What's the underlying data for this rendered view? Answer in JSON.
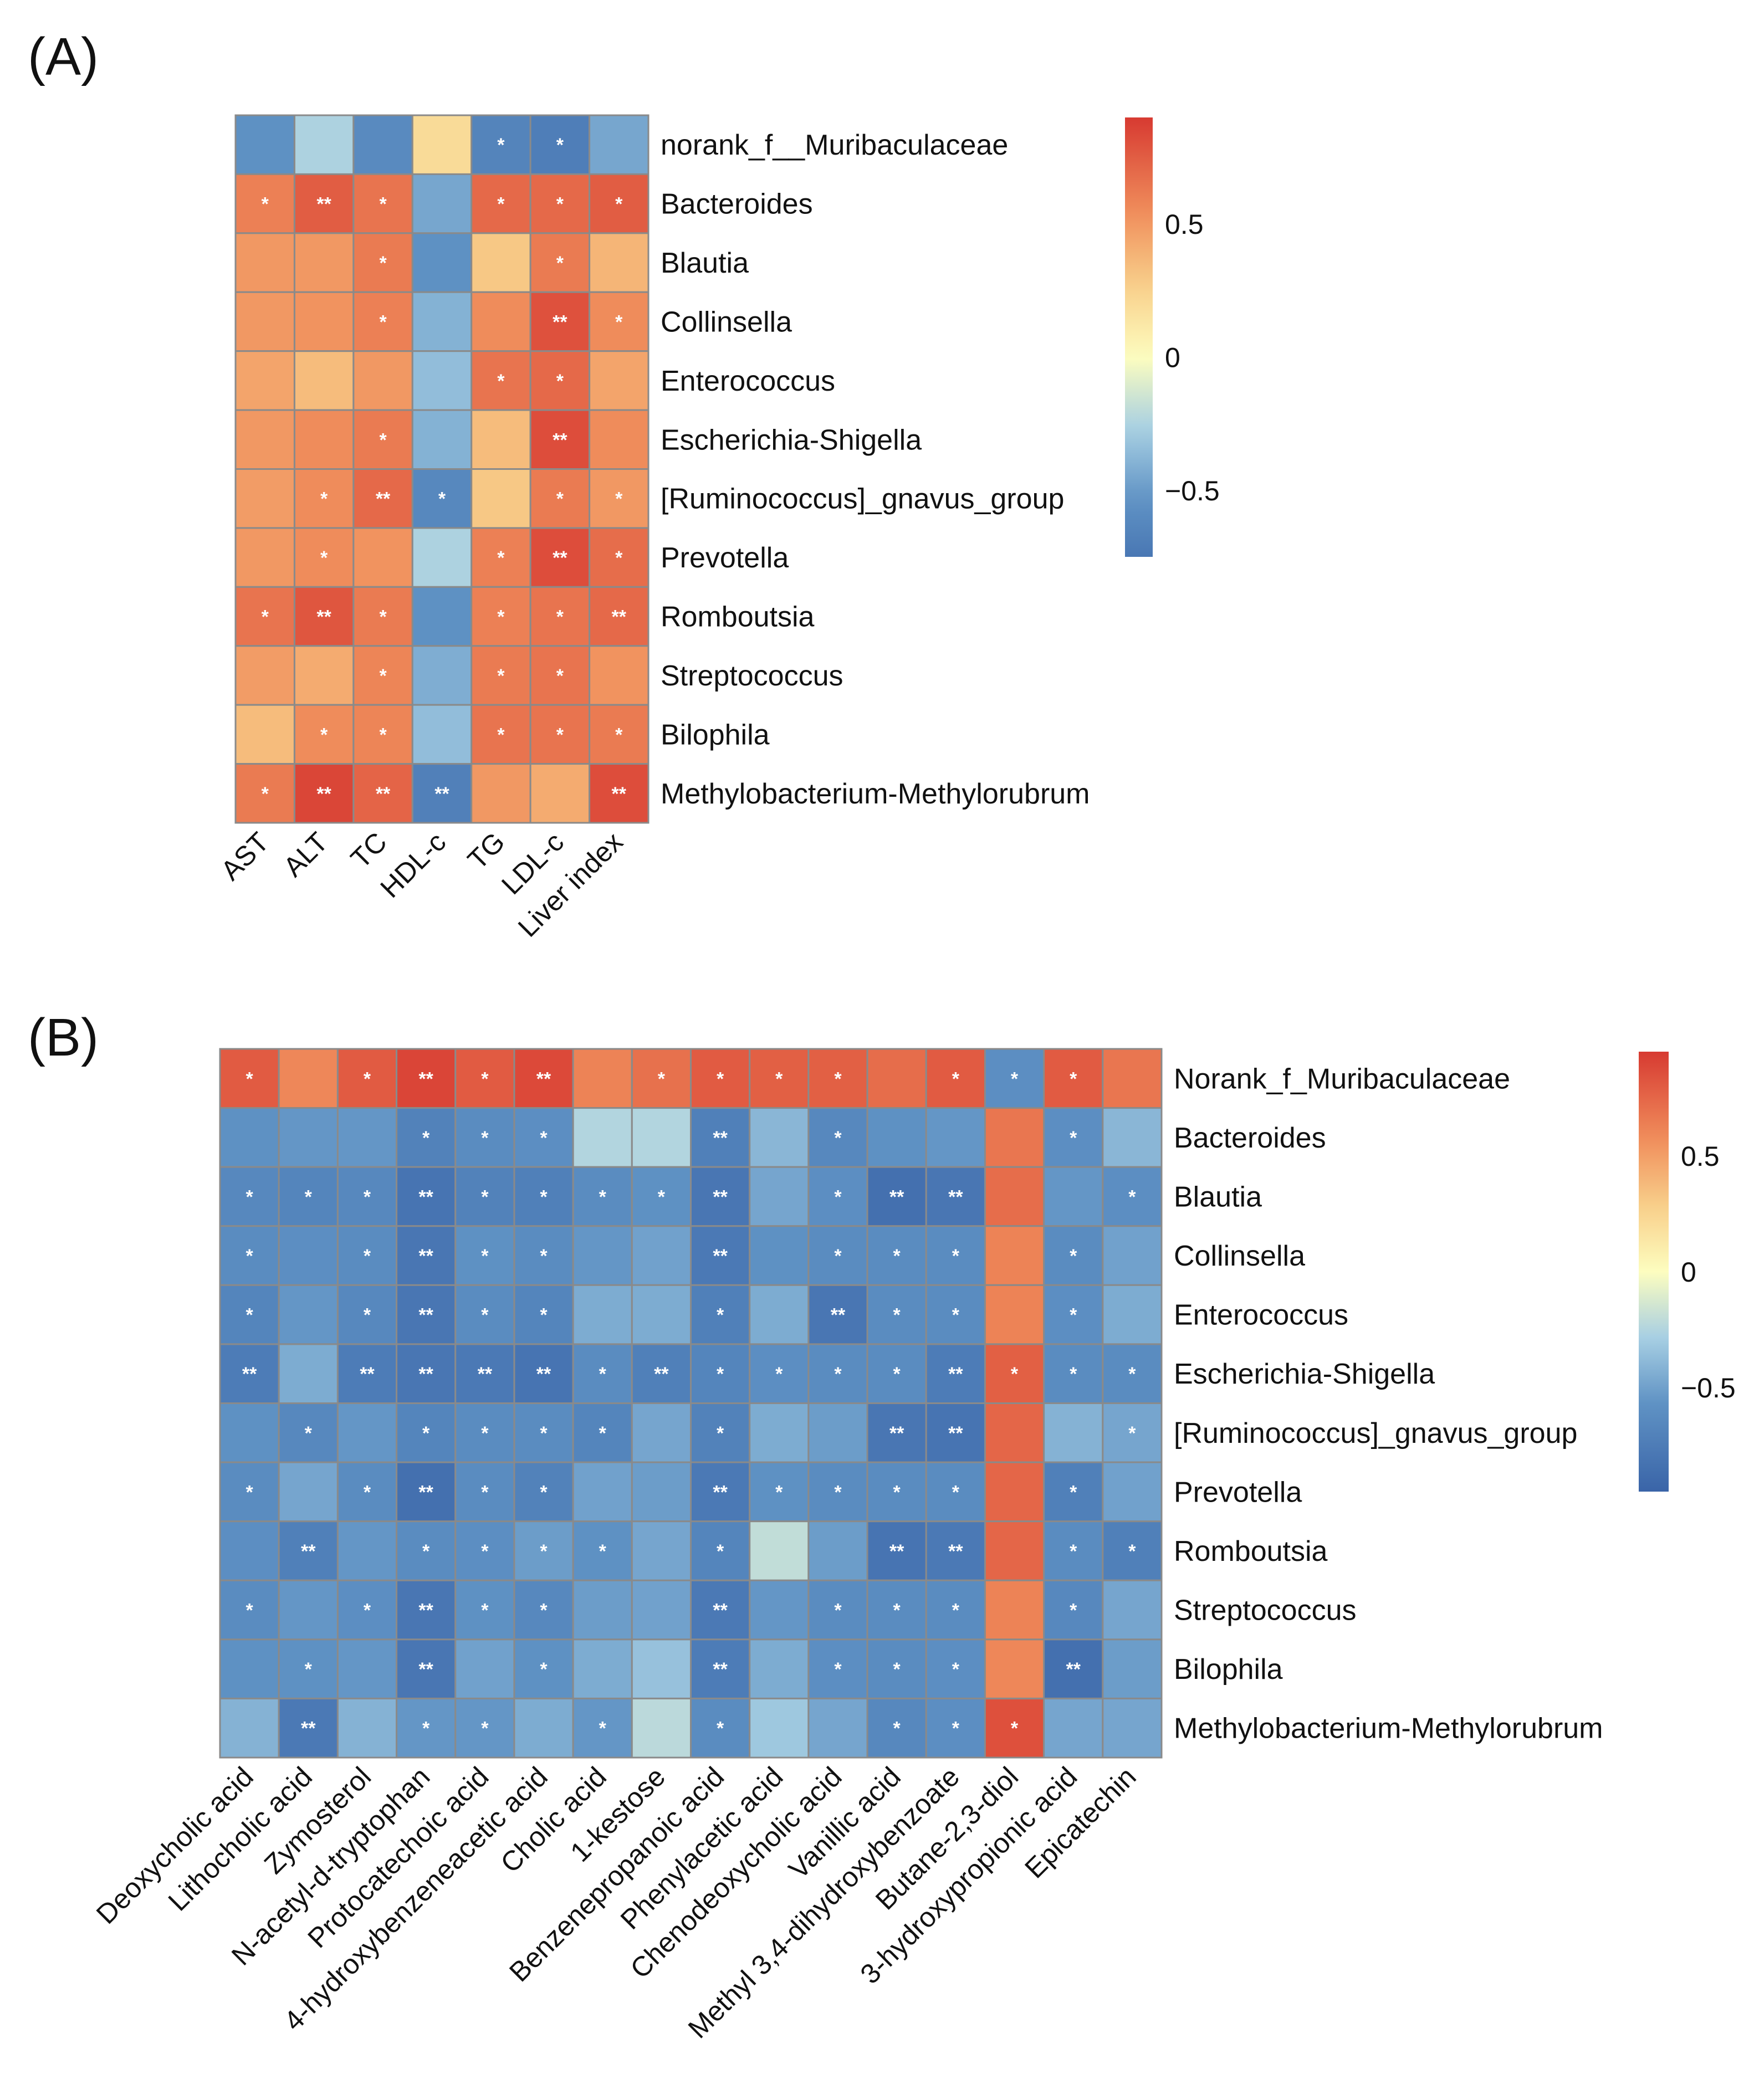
{
  "palette": {
    "low": "#3d6fae",
    "mid": "#fdfdbf",
    "high": "#d73a31",
    "grid": "#8a8a8a"
  },
  "chart_data": [
    {
      "type": "heatmap",
      "panel": "(A)",
      "rows": [
        "norank_f__Muribaculaceae",
        "Bacteroides",
        "Blautia",
        "Collinsella",
        "Enterococcus",
        "Escherichia-Shigella",
        "[Ruminococcus]_gnavus_group",
        "Prevotella",
        "Romboutsia",
        "Streptococcus",
        "Bilophila",
        "Methylobacterium-Methylorubrum"
      ],
      "columns": [
        "AST",
        "ALT",
        "TC",
        "HDL-c",
        "TG",
        "LDL-c",
        "Liver index"
      ],
      "values": [
        [
          -0.55,
          -0.25,
          -0.6,
          0.2,
          -0.65,
          -0.7,
          -0.45
        ],
        [
          0.6,
          0.75,
          0.65,
          -0.45,
          0.7,
          0.7,
          0.75
        ],
        [
          0.5,
          0.5,
          0.62,
          -0.55,
          0.3,
          0.62,
          0.38
        ],
        [
          0.5,
          0.52,
          0.6,
          -0.4,
          0.55,
          0.8,
          0.55
        ],
        [
          0.45,
          0.35,
          0.5,
          -0.35,
          0.65,
          0.7,
          0.45
        ],
        [
          0.5,
          0.55,
          0.62,
          -0.4,
          0.35,
          0.82,
          0.55
        ],
        [
          0.48,
          0.55,
          0.7,
          -0.62,
          0.3,
          0.62,
          0.5
        ],
        [
          0.5,
          0.55,
          0.52,
          -0.25,
          0.6,
          0.82,
          0.68
        ],
        [
          0.65,
          0.78,
          0.62,
          -0.55,
          0.6,
          0.65,
          0.7
        ],
        [
          0.48,
          0.42,
          0.58,
          -0.42,
          0.62,
          0.65,
          0.52
        ],
        [
          0.35,
          0.55,
          0.58,
          -0.35,
          0.65,
          0.65,
          0.62
        ],
        [
          0.62,
          0.85,
          0.72,
          -0.68,
          0.5,
          0.42,
          0.82
        ]
      ],
      "signif": [
        [
          "",
          "",
          "",
          "",
          "*",
          "*",
          ""
        ],
        [
          "*",
          "**",
          "*",
          "",
          "*",
          "*",
          "*"
        ],
        [
          "",
          "",
          "*",
          "",
          "",
          "*",
          ""
        ],
        [
          "",
          "",
          "*",
          "",
          "",
          "**",
          "*"
        ],
        [
          "",
          "",
          "",
          "",
          "*",
          "*",
          ""
        ],
        [
          "",
          "",
          "*",
          "",
          "",
          "**",
          ""
        ],
        [
          "",
          "*",
          "**",
          "*",
          "",
          "*",
          "*"
        ],
        [
          "",
          "*",
          "",
          "",
          "*",
          "**",
          "*"
        ],
        [
          "*",
          "**",
          "*",
          "",
          "*",
          "*",
          "**"
        ],
        [
          "",
          "",
          "*",
          "",
          "*",
          "*",
          ""
        ],
        [
          "",
          "*",
          "*",
          "",
          "*",
          "*",
          "*"
        ],
        [
          "*",
          "**",
          "**",
          "**",
          "",
          "",
          "**"
        ]
      ],
      "colorbar": {
        "range": [
          -0.75,
          0.9
        ],
        "ticks": [
          0.5,
          0
        ],
        "neg_tick_label": "−0.5",
        "neg_tick_value": -0.5
      }
    },
    {
      "type": "heatmap",
      "panel": "(B)",
      "rows": [
        "Norank_f_Muribaculaceae",
        "Bacteroides",
        "Blautia",
        "Collinsella",
        "Enterococcus",
        "Escherichia-Shigella",
        "[Ruminococcus]_gnavus_group",
        "Prevotella",
        "Romboutsia",
        "Streptococcus",
        "Bilophila",
        "Methylobacterium-Methylorubrum"
      ],
      "columns": [
        "Deoxycholic acid",
        "Lithocholic acid",
        "Zymosterol",
        "N-acetyl-d-tryptophan",
        "Protocatechoic acid",
        "4-hydroxybenzeneacetic acid",
        "Cholic acid",
        "1-kestose",
        "Benzenepropanoic acid",
        "Phenylacetic acid",
        "Chenodeoxycholic acid",
        "Vanillic acid",
        "Methyl 3,4-dihydroxybenzoate",
        "Butane-2,3-diol",
        "3-hydroxypropionic acid",
        "Epicatechin"
      ],
      "values": [
        [
          0.8,
          0.6,
          0.8,
          0.9,
          0.8,
          0.88,
          0.62,
          0.7,
          0.8,
          0.78,
          0.78,
          0.72,
          0.8,
          -0.6,
          0.8,
          0.68
        ],
        [
          -0.58,
          -0.55,
          -0.55,
          -0.7,
          -0.62,
          -0.6,
          -0.25,
          -0.25,
          -0.72,
          -0.4,
          -0.65,
          -0.58,
          -0.55,
          0.68,
          -0.6,
          -0.4
        ],
        [
          -0.65,
          -0.68,
          -0.65,
          -0.82,
          -0.7,
          -0.72,
          -0.62,
          -0.58,
          -0.8,
          -0.48,
          -0.6,
          -0.85,
          -0.8,
          0.72,
          -0.55,
          -0.6
        ],
        [
          -0.62,
          -0.6,
          -0.62,
          -0.8,
          -0.58,
          -0.62,
          -0.55,
          -0.5,
          -0.78,
          -0.58,
          -0.62,
          -0.62,
          -0.62,
          0.62,
          -0.62,
          -0.5
        ],
        [
          -0.68,
          -0.55,
          -0.65,
          -0.8,
          -0.62,
          -0.68,
          -0.45,
          -0.45,
          -0.72,
          -0.45,
          -0.8,
          -0.62,
          -0.62,
          0.62,
          -0.6,
          -0.45
        ],
        [
          -0.75,
          -0.45,
          -0.75,
          -0.8,
          -0.78,
          -0.82,
          -0.62,
          -0.72,
          -0.68,
          -0.6,
          -0.62,
          -0.62,
          -0.75,
          0.78,
          -0.62,
          -0.62
        ],
        [
          -0.58,
          -0.65,
          -0.55,
          -0.68,
          -0.62,
          -0.62,
          -0.68,
          -0.48,
          -0.7,
          -0.45,
          -0.52,
          -0.8,
          -0.82,
          0.75,
          -0.42,
          -0.48
        ],
        [
          -0.62,
          -0.48,
          -0.62,
          -0.85,
          -0.62,
          -0.7,
          -0.5,
          -0.52,
          -0.78,
          -0.58,
          -0.62,
          -0.62,
          -0.62,
          0.75,
          -0.72,
          -0.5
        ],
        [
          -0.6,
          -0.72,
          -0.55,
          -0.62,
          -0.6,
          -0.52,
          -0.58,
          -0.48,
          -0.68,
          -0.2,
          -0.52,
          -0.82,
          -0.78,
          0.75,
          -0.62,
          -0.72
        ],
        [
          -0.62,
          -0.55,
          -0.6,
          -0.8,
          -0.58,
          -0.65,
          -0.52,
          -0.5,
          -0.78,
          -0.55,
          -0.62,
          -0.62,
          -0.62,
          0.62,
          -0.65,
          -0.48
        ],
        [
          -0.58,
          -0.58,
          -0.55,
          -0.8,
          -0.5,
          -0.58,
          -0.45,
          -0.35,
          -0.75,
          -0.45,
          -0.6,
          -0.62,
          -0.6,
          0.6,
          -0.85,
          -0.52
        ],
        [
          -0.42,
          -0.78,
          -0.42,
          -0.55,
          -0.55,
          -0.45,
          -0.55,
          -0.22,
          -0.62,
          -0.32,
          -0.48,
          -0.65,
          -0.6,
          0.85,
          -0.48,
          -0.48
        ]
      ],
      "signif": [
        [
          "*",
          "",
          "*",
          "**",
          "*",
          "**",
          "",
          "*",
          "*",
          "*",
          "*",
          "",
          "*",
          "*",
          "*",
          ""
        ],
        [
          "",
          "",
          "",
          "*",
          "*",
          "*",
          "",
          "",
          "**",
          "",
          "*",
          "",
          "",
          "",
          "*",
          ""
        ],
        [
          "*",
          "*",
          "*",
          "**",
          "*",
          "*",
          "*",
          "*",
          "**",
          "",
          "*",
          "**",
          "**",
          "",
          "",
          "*"
        ],
        [
          "*",
          "",
          "*",
          "**",
          "*",
          "*",
          "",
          "",
          "**",
          "",
          "*",
          "*",
          "*",
          "",
          "*",
          ""
        ],
        [
          "*",
          "",
          "*",
          "**",
          "*",
          "*",
          "",
          "",
          "*",
          "",
          "**",
          "*",
          "*",
          "",
          "*",
          ""
        ],
        [
          "**",
          "",
          "**",
          "**",
          "**",
          "**",
          "*",
          "**",
          "*",
          "*",
          "*",
          "*",
          "**",
          "*",
          "*",
          "*"
        ],
        [
          "",
          "*",
          "",
          "*",
          "*",
          "*",
          "*",
          "",
          "*",
          "",
          "",
          "**",
          "**",
          "",
          "",
          "*"
        ],
        [
          "*",
          "",
          "*",
          "**",
          "*",
          "*",
          "",
          "",
          "**",
          "*",
          "*",
          "*",
          "*",
          "",
          "*",
          ""
        ],
        [
          "",
          "**",
          "",
          "*",
          "*",
          "*",
          "*",
          "",
          "*",
          "",
          "",
          "**",
          "**",
          "",
          "*",
          "*"
        ],
        [
          "*",
          "",
          "*",
          "**",
          "*",
          "*",
          "",
          "",
          "**",
          "",
          "*",
          "*",
          "*",
          "",
          "*",
          ""
        ],
        [
          "",
          "*",
          "",
          "**",
          "",
          "*",
          "",
          "",
          "**",
          "",
          "*",
          "*",
          "*",
          "",
          "**",
          ""
        ],
        [
          "",
          "**",
          "",
          "*",
          "*",
          "",
          "*",
          "",
          "*",
          "",
          "",
          "*",
          "*",
          "*",
          "",
          ""
        ]
      ],
      "colorbar": {
        "range": [
          -0.95,
          0.95
        ],
        "ticks": [
          0.5,
          0
        ],
        "neg_tick_label": "−0.5",
        "neg_tick_value": -0.5
      }
    }
  ]
}
